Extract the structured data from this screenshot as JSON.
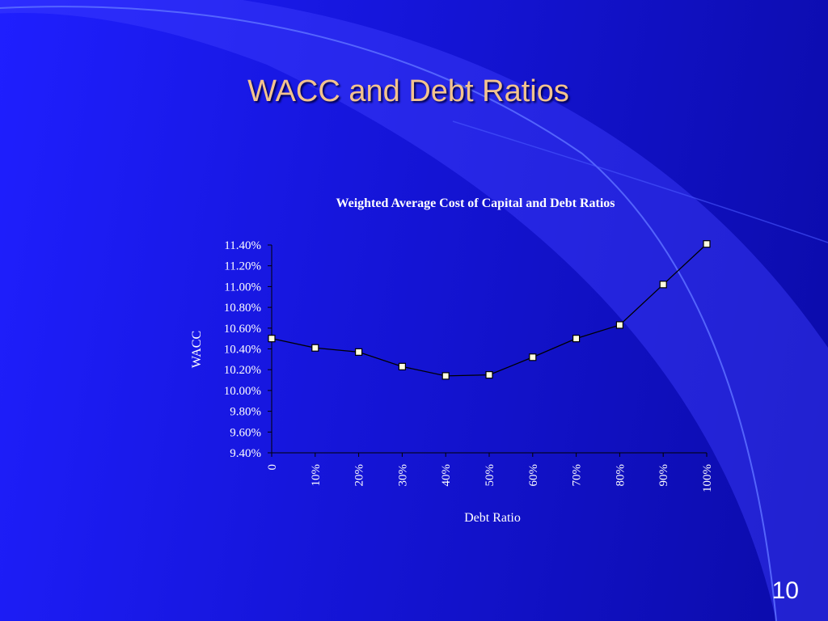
{
  "slide": {
    "title": "WACC and Debt Ratios",
    "page_number": "10"
  },
  "colors": {
    "title": "#f3c38e",
    "text": "#ffffff",
    "series_line": "#000000",
    "marker_fill": "#ffffe0"
  },
  "chart_data": {
    "type": "line",
    "title": "Weighted Average Cost of Capital and Debt Ratios",
    "xlabel": "Debt Ratio",
    "ylabel": "WACC",
    "categories": [
      "0",
      "10%",
      "20%",
      "30%",
      "40%",
      "50%",
      "60%",
      "70%",
      "80%",
      "90%",
      "100%"
    ],
    "series": [
      {
        "values": [
          10.5,
          10.41,
          10.37,
          10.23,
          10.14,
          10.15,
          10.32,
          10.5,
          10.63,
          11.02,
          11.41
        ]
      }
    ],
    "ylim": [
      9.4,
      11.4
    ],
    "y_ticks": [
      "9.40%",
      "9.60%",
      "9.80%",
      "10.00%",
      "10.20%",
      "10.40%",
      "10.60%",
      "10.80%",
      "11.00%",
      "11.20%",
      "11.40%"
    ],
    "grid": false,
    "legend": "none"
  }
}
